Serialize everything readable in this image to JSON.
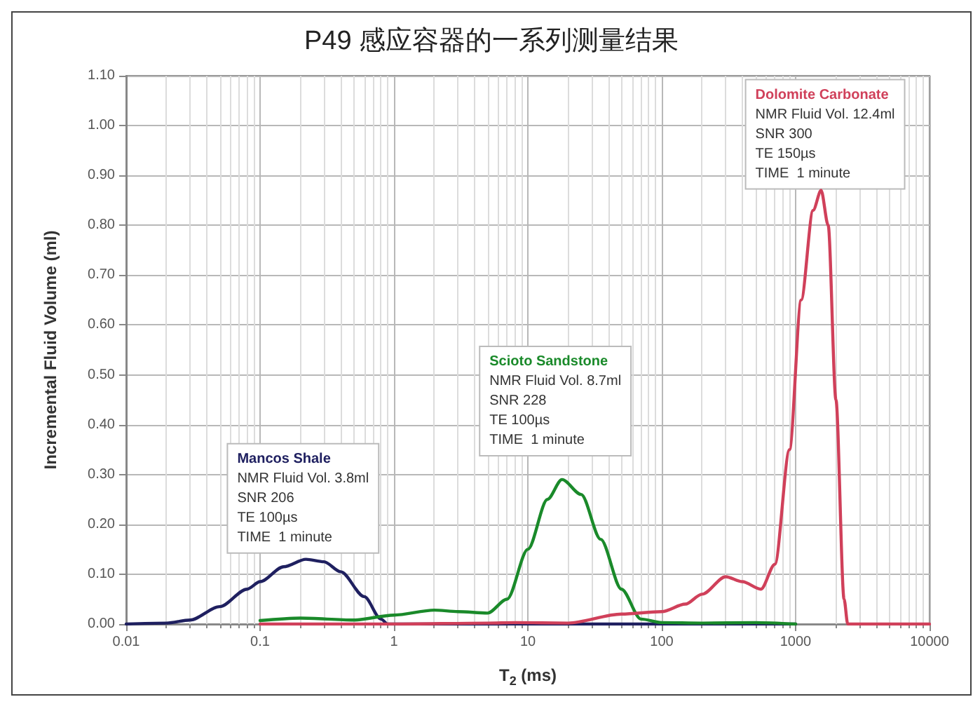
{
  "chart_data": {
    "type": "line",
    "title": "P49 感应容器的一系列测量结果",
    "xlabel": "T$_{2}$ (ms)",
    "ylabel": "Incremental Fluid Volume (ml)",
    "log": "x",
    "grid": true,
    "legend": false,
    "marker": "none",
    "line_style": "solid",
    "xlim": [
      0.01,
      10000
    ],
    "xticks": [
      0.01,
      0.1,
      1,
      10,
      100,
      1000,
      10000
    ],
    "ylim": [
      0,
      1.1
    ],
    "yticks": [
      {
        "value": 0,
        "label": "0.00"
      },
      {
        "value": 0.1,
        "label": "0.10"
      },
      {
        "value": 0.2,
        "label": "0.20"
      },
      {
        "value": 0.3,
        "label": "0.30"
      },
      {
        "value": 0.4,
        "label": "0.40"
      },
      {
        "value": 0.5,
        "label": "0.50"
      },
      {
        "value": 0.6,
        "label": "0.60"
      },
      {
        "value": 0.7,
        "label": "0.70"
      },
      {
        "value": 0.8,
        "label": "0.80"
      },
      {
        "value": 0.9,
        "label": "0.90"
      },
      {
        "value": 1.0,
        "label": "1.00"
      },
      {
        "value": 1.1,
        "label": "1.10"
      }
    ],
    "series": [
      {
        "name": "Mancos Shale",
        "color": "#1f2060",
        "x": [
          0.01,
          0.02,
          0.03,
          0.05,
          0.08,
          0.1,
          0.15,
          0.22,
          0.3,
          0.4,
          0.6,
          0.8,
          0.9,
          10,
          1000
        ],
        "values": [
          0,
          0.002,
          0.008,
          0.035,
          0.07,
          0.085,
          0.115,
          0.13,
          0.125,
          0.105,
          0.055,
          0.01,
          0,
          0,
          0
        ]
      },
      {
        "name": "Scioto Sandstone",
        "color": "#1a8a2a",
        "x": [
          0.1,
          0.2,
          0.5,
          1,
          2,
          3,
          5,
          7,
          10,
          14,
          18,
          25,
          35,
          50,
          70,
          100,
          200,
          500,
          1000
        ],
        "values": [
          0.007,
          0.012,
          0.008,
          0.018,
          0.028,
          0.025,
          0.022,
          0.05,
          0.15,
          0.25,
          0.29,
          0.26,
          0.17,
          0.07,
          0.01,
          0.003,
          0.002,
          0.003,
          0
        ]
      },
      {
        "name": "Dolomite Carbonate",
        "color": "#d0405a",
        "x": [
          0.1,
          1,
          5,
          8,
          20,
          50,
          100,
          150,
          200,
          300,
          400,
          550,
          700,
          900,
          1100,
          1350,
          1550,
          1750,
          2000,
          2300,
          2450,
          10000
        ],
        "values": [
          0,
          0,
          0.002,
          0.003,
          0.002,
          0.02,
          0.025,
          0.04,
          0.06,
          0.095,
          0.085,
          0.07,
          0.12,
          0.35,
          0.65,
          0.83,
          0.87,
          0.8,
          0.45,
          0.05,
          0,
          0
        ]
      }
    ],
    "annotations": [
      "NMR Fluid Vol. 3.8ml\nSNR 206\nTE 100µs\nTIME  1 minute",
      "NMR Fluid Vol. 8.7ml\nSNR 228\nTE 100µs\nTIME  1 minute",
      "NMR Fluid Vol. 12.4ml\nSNR 300\nTE 150µs\nTIME  1 minute"
    ]
  }
}
